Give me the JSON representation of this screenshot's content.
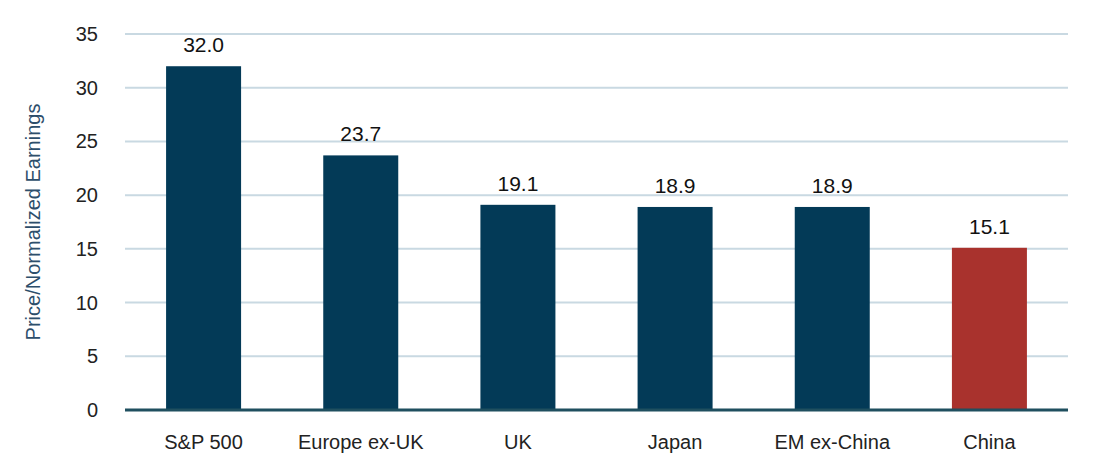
{
  "chart_data": {
    "type": "bar",
    "y_label": "Price/Normalized Earnings",
    "categories": [
      "S&P 500",
      "Europe ex-UK",
      "UK",
      "Japan",
      "EM ex-China",
      "China"
    ],
    "values": [
      32.0,
      23.7,
      19.1,
      18.9,
      18.9,
      15.1
    ],
    "value_labels": [
      "32.0",
      "23.7",
      "19.1",
      "18.9",
      "18.9",
      "15.1"
    ],
    "colors": [
      "#033a57",
      "#033a57",
      "#033a57",
      "#033a57",
      "#033a57",
      "#a9322d"
    ],
    "ylim": [
      0,
      35
    ],
    "yticks": [
      0,
      5,
      10,
      15,
      20,
      25,
      30,
      35
    ],
    "grid": true,
    "data_labels": true
  }
}
